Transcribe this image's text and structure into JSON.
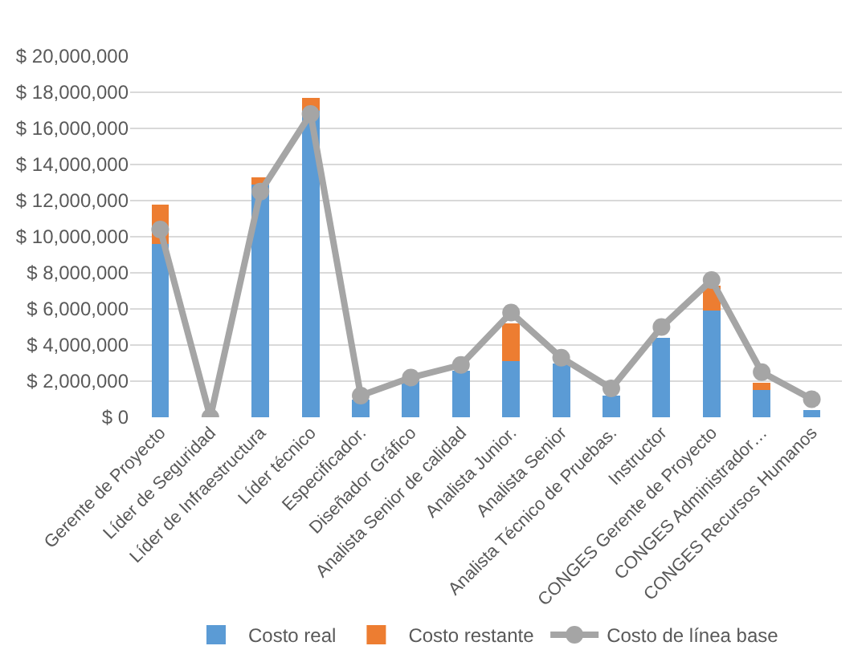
{
  "chart_data": {
    "type": "bar",
    "stacked": true,
    "categories": [
      "Gerente de Proyecto",
      "Líder de Seguridad",
      "Líder de Infraestructura",
      "Líder técnico",
      "Especificador.",
      "Diseñador Gráfico",
      "Analista Senior de calidad",
      "Analista Junior.",
      "Analista Senior",
      "Analista Técnico de Pruebas.",
      "Instructor",
      "CONGES Gerente de Proyecto",
      "CONGES Administrador…",
      "CONGES Recursos Humanos"
    ],
    "series": [
      {
        "name": "Costo real",
        "color": "#5b9bd5",
        "values": [
          9600000,
          0,
          12900000,
          17000000,
          1000000,
          2000000,
          2600000,
          3100000,
          3000000,
          1200000,
          4400000,
          5900000,
          1500000,
          400000
        ]
      },
      {
        "name": "Costo restante",
        "color": "#ed7d31",
        "values": [
          2200000,
          0,
          400000,
          700000,
          0,
          0,
          0,
          2100000,
          0,
          0,
          0,
          1400000,
          400000,
          0
        ]
      },
      {
        "name": "Costo de línea base",
        "type": "line",
        "color": "#a5a5a5",
        "marker": "circle",
        "values": [
          10400000,
          0,
          12500000,
          16800000,
          1200000,
          2200000,
          2900000,
          5800000,
          3300000,
          1600000,
          5000000,
          7600000,
          2500000,
          1000000
        ]
      }
    ],
    "ylim": [
      0,
      20000000
    ],
    "yticks": [
      {
        "value": 0,
        "label": "$ 0"
      },
      {
        "value": 2000000,
        "label": "$ 2,000,000"
      },
      {
        "value": 4000000,
        "label": "$ 4,000,000"
      },
      {
        "value": 6000000,
        "label": "$ 6,000,000"
      },
      {
        "value": 8000000,
        "label": "$ 8,000,000"
      },
      {
        "value": 10000000,
        "label": "$ 10,000,000"
      },
      {
        "value": 12000000,
        "label": "$ 12,000,000"
      },
      {
        "value": 14000000,
        "label": "$ 14,000,000"
      },
      {
        "value": 16000000,
        "label": "$ 16,000,000"
      },
      {
        "value": 18000000,
        "label": "$ 18,000,000"
      },
      {
        "value": 20000000,
        "label": "$ 20,000,000"
      }
    ],
    "grid": "y",
    "legend": "bottom"
  }
}
